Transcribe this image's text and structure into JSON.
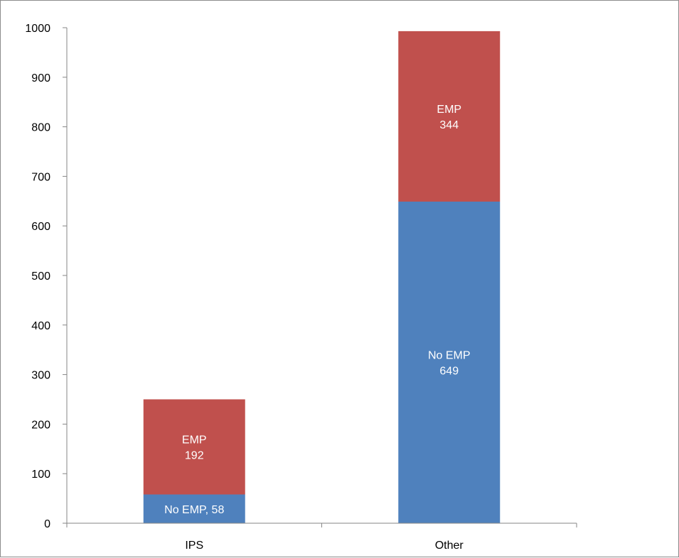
{
  "chart_data": {
    "type": "bar",
    "stacked": true,
    "categories": [
      "IPS",
      "Other"
    ],
    "series": [
      {
        "values": [
          58,
          649
        ],
        "color": "#4f81bd"
      },
      {
        "values": [
          192,
          344
        ],
        "color": "#c0504d"
      }
    ],
    "data_labels": [
      [
        "No EMP, 58",
        "No EMP\n649"
      ],
      [
        "EMP\n192",
        "EMP\n344"
      ]
    ],
    "title": "",
    "xlabel": "",
    "ylabel": "",
    "ylim": [
      0,
      1000
    ],
    "yticks": [
      0,
      100,
      200,
      300,
      400,
      500,
      600,
      700,
      800,
      900,
      1000
    ],
    "grid": false,
    "legend": "none"
  }
}
